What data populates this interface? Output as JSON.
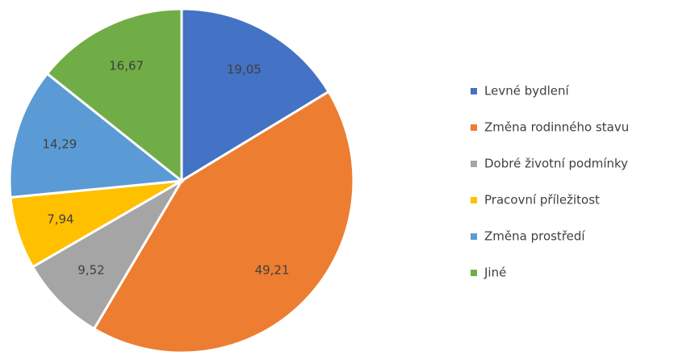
{
  "chart_data": {
    "type": "pie",
    "categories": [
      "Levné bydlení",
      "Změna rodinného stavu",
      "Dobré životní podmínky",
      "Pracovní příležitost",
      "Změna prostředí",
      "Jiné"
    ],
    "values": [
      19.05,
      49.21,
      9.52,
      7.94,
      14.29,
      16.67
    ],
    "value_labels": [
      "19,05",
      "49,21",
      "9,52",
      "7,94",
      "14,29",
      "16,67"
    ],
    "colors": [
      "#4472c4",
      "#ed7d31",
      "#a5a5a5",
      "#ffc000",
      "#5b9bd5",
      "#70ad47"
    ],
    "legend": "right"
  }
}
